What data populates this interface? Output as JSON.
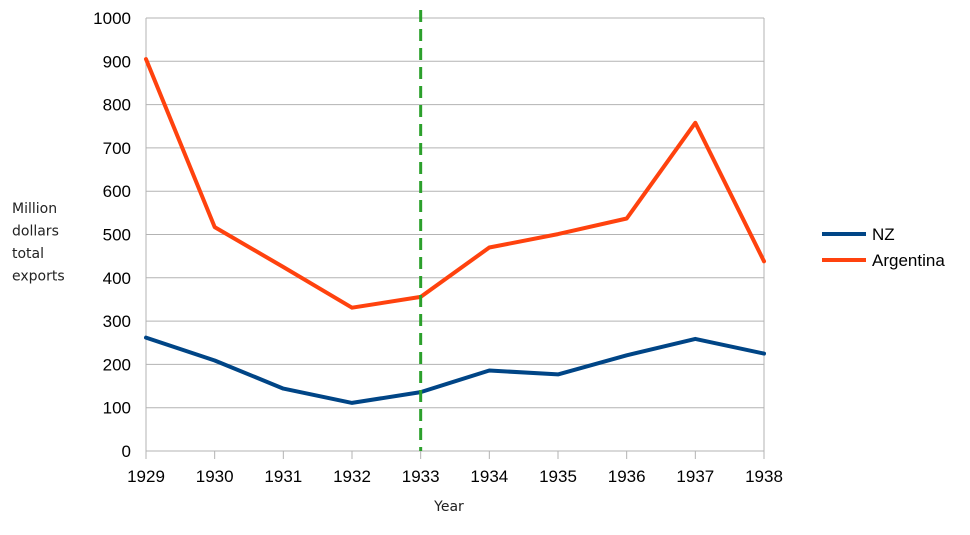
{
  "chart_data": {
    "type": "line",
    "title": "",
    "xlabel": "Year",
    "ylabel_lines": [
      "Million",
      "dollars",
      "total",
      "exports"
    ],
    "x": [
      "1929",
      "1930",
      "1931",
      "1932",
      "1933",
      "1934",
      "1935",
      "1936",
      "1937",
      "1938"
    ],
    "y_ticks": [
      "0",
      "100",
      "200",
      "300",
      "400",
      "500",
      "600",
      "700",
      "800",
      "900",
      "1000"
    ],
    "ylim": [
      0,
      1000
    ],
    "grid": true,
    "legend_position": "right",
    "series": [
      {
        "name": "NZ",
        "color": "#004586",
        "values": [
          262,
          209,
          144,
          111,
          136,
          186,
          177,
          221,
          259,
          225
        ]
      },
      {
        "name": "Argentina",
        "color": "#ff420e",
        "values": [
          905,
          517,
          425,
          331,
          356,
          470,
          501,
          537,
          758,
          438
        ]
      }
    ],
    "reference_line": {
      "x": "1933",
      "color": "#2ca02c",
      "style": "dashed"
    }
  }
}
